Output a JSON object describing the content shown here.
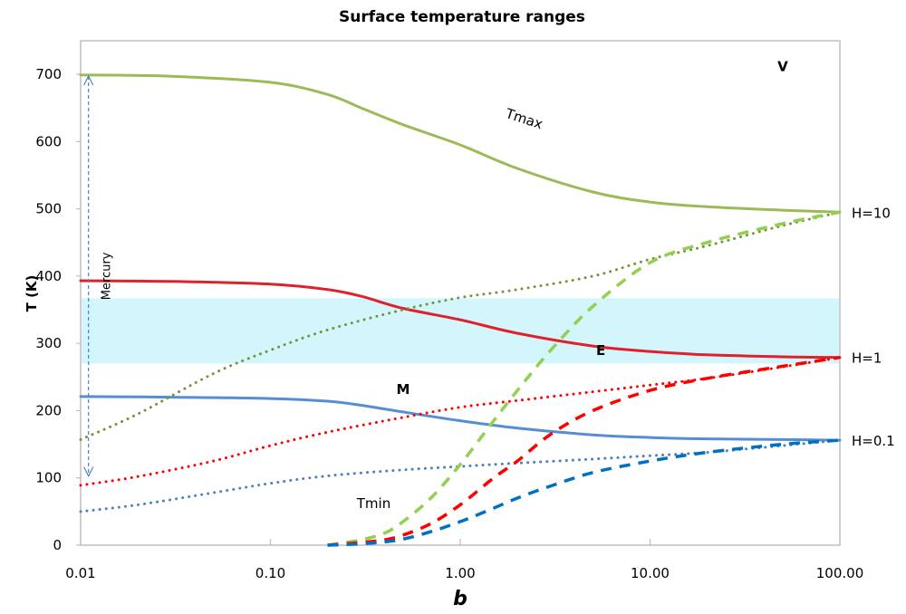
{
  "chart_data": {
    "type": "line",
    "title": "Surface temperature ranges",
    "xlabel": "b",
    "ylabel": "T (K)",
    "xscale": "log",
    "xlim": [
      0.01,
      100
    ],
    "ylim": [
      0,
      750
    ],
    "xticks": [
      0.01,
      0.1,
      1,
      10,
      100
    ],
    "xtick_labels": [
      "0.01",
      "0.10",
      "1.00",
      "10.00",
      "100.00"
    ],
    "yticks": [
      0,
      100,
      200,
      300,
      400,
      500,
      600,
      700
    ],
    "ytick_labels": [
      "0",
      "100",
      "200",
      "300",
      "400",
      "500",
      "600",
      "700"
    ],
    "grid": false,
    "legend": "none",
    "habitable_band": {
      "ymin": 270,
      "ymax": 367,
      "color": "#d2f6fb"
    },
    "colors": {
      "green": "#9bbb59",
      "green_dotted": "#77933c",
      "green_dashed": "#92d050",
      "red": "#ff0000",
      "red_solid": "#d9303a",
      "blue": "#4f81bd",
      "blue_solid": "#558ed5",
      "blue_dashed": "#0070c0"
    },
    "series": [
      {
        "name": "Tmax H=10",
        "style": "solid",
        "color": "#9bbb59",
        "x": [
          0.01,
          0.03,
          0.1,
          0.2,
          0.3,
          0.5,
          1,
          2,
          5,
          10,
          20,
          50,
          100
        ],
        "y": [
          699,
          697,
          688,
          670,
          650,
          625,
          595,
          560,
          525,
          510,
          503,
          498,
          495
        ]
      },
      {
        "name": "Tmax H=1",
        "style": "solid",
        "color": "#e0202a",
        "x": [
          0.01,
          0.03,
          0.1,
          0.2,
          0.3,
          0.5,
          1,
          2,
          5,
          10,
          20,
          50,
          100
        ],
        "y": [
          393,
          392,
          388,
          380,
          370,
          352,
          335,
          315,
          296,
          288,
          283,
          280,
          279
        ]
      },
      {
        "name": "Tmax H=0.1",
        "style": "solid",
        "color": "#558ed5",
        "x": [
          0.01,
          0.03,
          0.1,
          0.2,
          0.3,
          0.5,
          1,
          2,
          5,
          10,
          20,
          50,
          100
        ],
        "y": [
          221,
          220,
          218,
          214,
          208,
          198,
          185,
          174,
          164,
          160,
          158,
          157,
          156
        ]
      },
      {
        "name": "Tmin H=10 (dotted)",
        "style": "dotted",
        "color": "#77933c",
        "x": [
          0.01,
          0.02,
          0.05,
          0.1,
          0.2,
          0.5,
          1,
          2,
          5,
          10,
          20,
          50,
          100
        ],
        "y": [
          157,
          195,
          255,
          290,
          320,
          350,
          368,
          380,
          400,
          425,
          445,
          475,
          495
        ]
      },
      {
        "name": "Tmin H=1 (dotted)",
        "style": "dotted",
        "color": "#ff0000",
        "x": [
          0.01,
          0.02,
          0.05,
          0.1,
          0.2,
          0.5,
          1,
          2,
          5,
          10,
          20,
          50,
          100
        ],
        "y": [
          89,
          102,
          125,
          148,
          168,
          190,
          205,
          215,
          228,
          238,
          248,
          265,
          279
        ]
      },
      {
        "name": "Tmin H=0.1 (dotted)",
        "style": "dotted",
        "color": "#4f81bd",
        "x": [
          0.01,
          0.02,
          0.05,
          0.1,
          0.2,
          0.5,
          1,
          2,
          5,
          10,
          20,
          50,
          100
        ],
        "y": [
          50,
          60,
          78,
          92,
          103,
          112,
          117,
          122,
          128,
          133,
          138,
          148,
          156
        ]
      },
      {
        "name": "Tmin H=10 (dashed)",
        "style": "dashed",
        "color": "#92d050",
        "x": [
          0.2,
          0.3,
          0.4,
          0.5,
          0.7,
          1,
          1.5,
          2,
          3,
          5,
          10,
          20,
          50,
          100
        ],
        "y": [
          0,
          8,
          18,
          35,
          70,
          120,
          185,
          230,
          290,
          355,
          420,
          450,
          478,
          495
        ]
      },
      {
        "name": "Tmin H=1 (dashed)",
        "style": "dashed",
        "color": "#ff0000",
        "x": [
          0.2,
          0.3,
          0.4,
          0.5,
          0.7,
          1,
          1.5,
          2,
          3,
          5,
          10,
          20,
          50,
          100
        ],
        "y": [
          0,
          4,
          8,
          15,
          32,
          60,
          100,
          125,
          165,
          200,
          230,
          248,
          266,
          279
        ]
      },
      {
        "name": "Tmin H=0.1 (dashed)",
        "style": "dashed",
        "color": "#0070c0",
        "x": [
          0.2,
          0.3,
          0.4,
          0.5,
          0.7,
          1,
          1.5,
          2,
          3,
          5,
          10,
          20,
          50,
          100
        ],
        "y": [
          0,
          2,
          5,
          9,
          20,
          35,
          55,
          70,
          88,
          108,
          125,
          138,
          150,
          156
        ]
      }
    ],
    "annotations": [
      {
        "text": "Tmax",
        "kind": "curve-label",
        "x": 2.0,
        "y": 630
      },
      {
        "text": "Tmin",
        "kind": "curve-label",
        "x": 0.35,
        "y": 55
      },
      {
        "text": "V",
        "kind": "planet",
        "x": 50,
        "y": 705
      },
      {
        "text": "E",
        "kind": "planet",
        "x": 5.5,
        "y": 283
      },
      {
        "text": "M",
        "kind": "planet",
        "x": 0.5,
        "y": 225
      },
      {
        "text": "Mercury",
        "kind": "range",
        "x": 0.012,
        "y": 400
      },
      {
        "text": "H=10",
        "kind": "right-label",
        "y": 495
      },
      {
        "text": "H=1",
        "kind": "right-label",
        "y": 279
      },
      {
        "text": "H=0.1",
        "kind": "right-label",
        "y": 156
      }
    ],
    "mercury_range": {
      "x": 0.011,
      "ymin": 100,
      "ymax": 700
    }
  }
}
